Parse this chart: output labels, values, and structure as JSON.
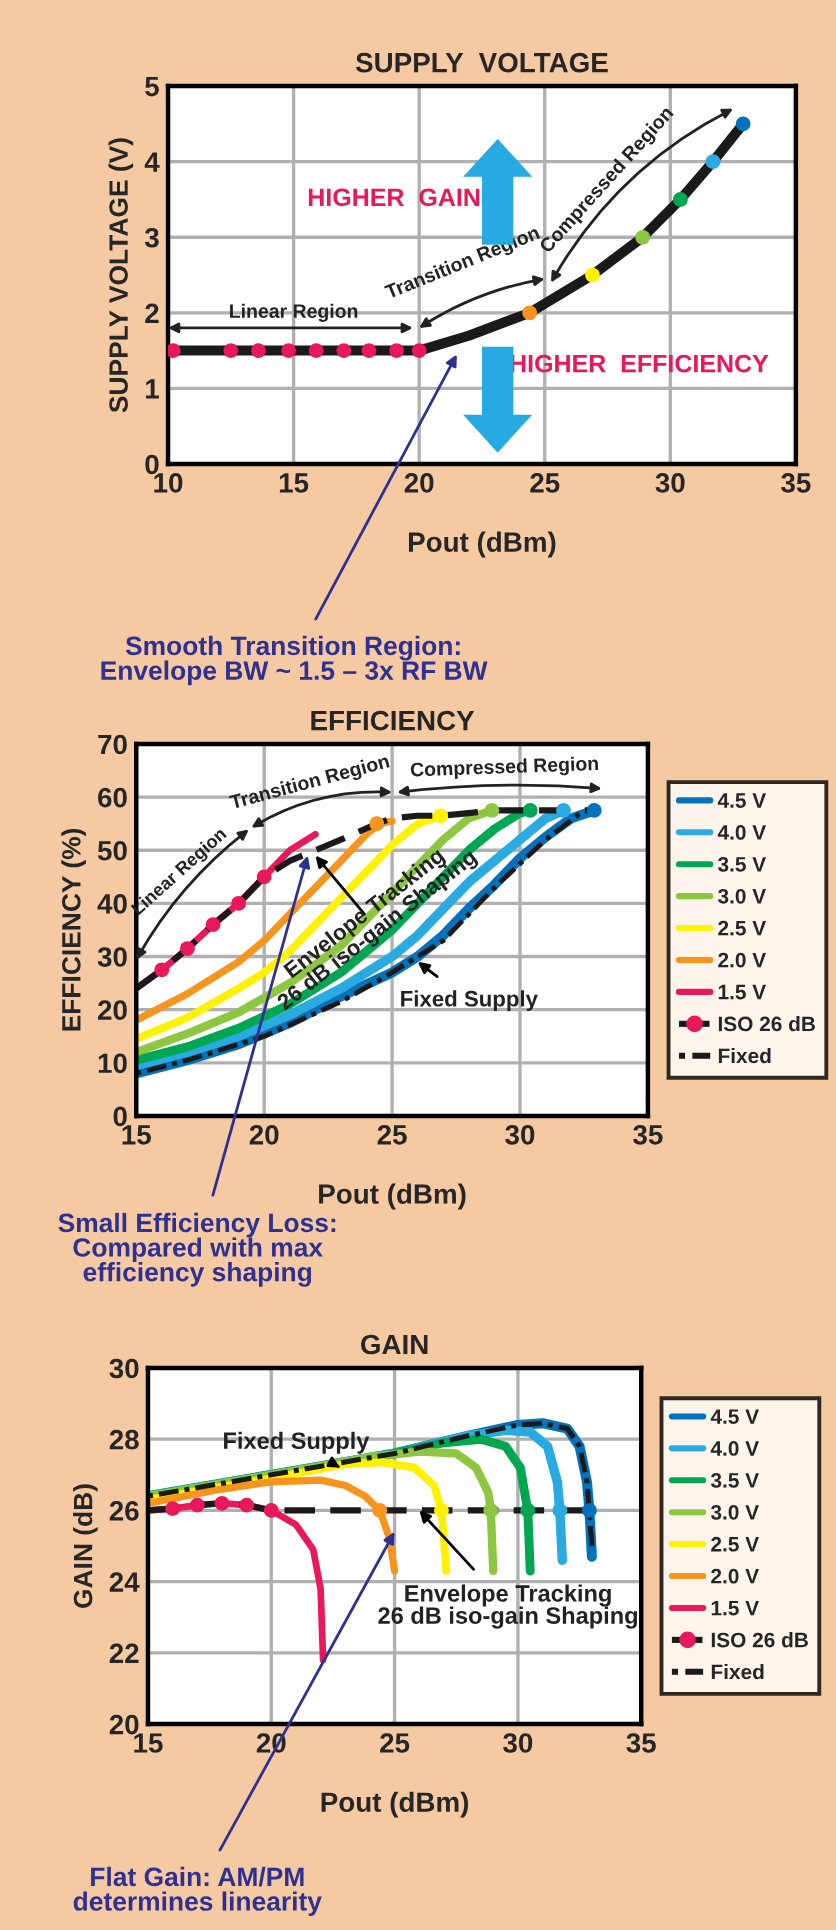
{
  "chart_data": [
    {
      "type": "line",
      "title": "SUPPLY  VOLTAGE",
      "xlabel": "Pout (dBm)",
      "ylabel": "SUPPLY VOLTAGE (V)",
      "xlim": [
        10,
        35
      ],
      "ylim": [
        0,
        5
      ],
      "xticks": [
        10,
        15,
        20,
        25,
        30,
        35
      ],
      "yticks": [
        0,
        1,
        2,
        3,
        4,
        5
      ],
      "grid": true,
      "legend": false,
      "line_style": "solid",
      "series": [
        {
          "color": "#1a1a1a",
          "marker": "circle",
          "x": [
            10.2,
            12.5,
            13.6,
            14.8,
            15.9,
            17,
            18,
            19.1,
            20,
            22,
            24.4,
            26.9,
            28.9,
            30.4,
            31.7,
            32.9
          ],
          "values": [
            1.5,
            1.5,
            1.5,
            1.5,
            1.5,
            1.5,
            1.5,
            1.5,
            1.5,
            1.7,
            2.0,
            2.5,
            3.0,
            3.5,
            4.0,
            4.5
          ],
          "colors": [
            "#e8185a",
            "#e8185a",
            "#e8185a",
            "#e8185a",
            "#e8185a",
            "#e8185a",
            "#e8185a",
            "#e8185a",
            "#e8185a",
            null,
            "#f7941d",
            "#fff200",
            "#8dc63f",
            "#00a651",
            "#29abe2",
            "#0072bc"
          ]
        }
      ],
      "annotations": [
        "HIGHER  GAIN",
        "HIGHER  EFFICIENCY",
        "Linear Region",
        "Transition Region",
        "Compressed Region",
        "Smooth Transition Region:\nEnvelope BW ~ 1.5 – 3x RF BW"
      ]
    },
    {
      "type": "line",
      "title": "EFFICIENCY",
      "xlabel": "Pout (dBm)",
      "ylabel": "EFFICIENCY (%)",
      "xlim": [
        15,
        35
      ],
      "ylim": [
        0,
        70
      ],
      "xticks": [
        15,
        20,
        25,
        30,
        35
      ],
      "yticks": [
        0,
        10,
        20,
        30,
        40,
        50,
        60,
        70
      ],
      "grid": true,
      "legend": "right",
      "line_style": "solid",
      "series": [
        {
          "name": "4.5 V",
          "color": "#0072bc",
          "x": [
            15,
            17,
            19,
            21,
            23,
            25,
            26,
            27,
            28,
            29,
            30,
            31,
            32,
            32.9
          ],
          "values": [
            8,
            10.5,
            13.5,
            17.5,
            22.5,
            27,
            30,
            34,
            39,
            43.5,
            48.5,
            52.5,
            56,
            57.5
          ]
        },
        {
          "name": "4.0 V",
          "color": "#29abe2",
          "x": [
            15,
            17,
            19,
            21,
            23,
            24,
            25,
            26,
            27,
            28,
            29,
            30,
            31,
            31.7
          ],
          "values": [
            9.5,
            12,
            15,
            19,
            24,
            27,
            30,
            34,
            39,
            44,
            48,
            52,
            56,
            57.5
          ]
        },
        {
          "name": "3.5 V",
          "color": "#00a651",
          "x": [
            15,
            17,
            19,
            21,
            23,
            24,
            25,
            26,
            27,
            28,
            29,
            30,
            30.4
          ],
          "values": [
            10.5,
            13,
            16.5,
            21,
            27,
            31,
            35,
            40,
            45,
            50,
            54,
            57,
            57.5
          ]
        },
        {
          "name": "3.0 V",
          "color": "#8dc63f",
          "x": [
            15,
            17,
            19,
            21,
            22,
            23,
            24,
            25,
            26,
            27,
            28,
            28.9
          ],
          "values": [
            12,
            15.5,
            19.5,
            25,
            28.5,
            32,
            37,
            42,
            47,
            52,
            56,
            57.5
          ]
        },
        {
          "name": "2.5 V",
          "color": "#fff200",
          "x": [
            15,
            17,
            19,
            20,
            21,
            22,
            23,
            24,
            25,
            26,
            26.9
          ],
          "values": [
            14.5,
            18.5,
            24,
            27,
            31,
            36,
            41,
            46,
            51,
            55,
            56.5
          ]
        },
        {
          "name": "2.0 V",
          "color": "#f7941d",
          "x": [
            15,
            17,
            19,
            20,
            21,
            22,
            23,
            24,
            24.5,
            25
          ],
          "values": [
            18,
            23,
            29,
            33,
            38,
            43,
            48,
            53,
            55,
            55.5
          ]
        },
        {
          "name": "1.5 V",
          "color": "#e8185a",
          "x": [
            15,
            16,
            17,
            18,
            19,
            20,
            21,
            22
          ],
          "values": [
            24,
            27.5,
            31.5,
            36,
            40,
            45,
            50,
            53
          ]
        },
        {
          "name": "ISO 26 dB",
          "color": "#1a1a1a",
          "line_style": "dashed",
          "x": [
            15,
            16,
            17,
            18,
            19,
            20,
            21,
            22,
            23,
            24.4,
            25,
            26,
            26.9,
            28,
            28.9,
            30.4,
            31.7,
            32.9
          ],
          "values": [
            24,
            27.5,
            31.5,
            36,
            40,
            45,
            48,
            50,
            52,
            55,
            56,
            56.5,
            56.5,
            57,
            57.5,
            57.5,
            57.5,
            57.5
          ]
        },
        {
          "type": "scatter",
          "marker": "circle",
          "x": [
            16,
            17,
            18,
            19,
            20,
            24.4,
            26.9,
            28.9,
            30.4,
            31.7,
            32.9
          ],
          "values": [
            27.5,
            31.5,
            36,
            40,
            45,
            55,
            56.5,
            57.5,
            57.5,
            57.5,
            57.5
          ],
          "colors": [
            "#e8185a",
            "#e8185a",
            "#e8185a",
            "#e8185a",
            "#e8185a",
            "#f7941d",
            "#fff200",
            "#8dc63f",
            "#00a651",
            "#29abe2",
            "#0072bc"
          ]
        },
        {
          "name": "Fixed",
          "color": "#1a1a1a",
          "line_style": "dashdot",
          "x": [
            15,
            17,
            20,
            23,
            25,
            27,
            29,
            31,
            32.5
          ],
          "values": [
            8,
            10.5,
            15,
            21.5,
            27,
            33,
            43,
            52,
            57.5
          ]
        }
      ],
      "annotations": [
        "Linear Region",
        "Transition Region",
        "Compressed Region",
        {
          "text": "Envelope Tracking\n26 dB iso-gain Shaping",
          "x": 22,
          "y": 49
        },
        {
          "text": "Fixed Supply",
          "x": 26,
          "y": 29
        },
        {
          "text": "Small Efficiency Loss:\nCompared with max\nefficiency shaping",
          "x": 21.7,
          "y": 49
        }
      ]
    },
    {
      "type": "line",
      "title": "GAIN",
      "xlabel": "Pout (dBm)",
      "ylabel": "GAIN (dB)",
      "xlim": [
        15,
        35
      ],
      "ylim": [
        20,
        30
      ],
      "xticks": [
        15,
        20,
        25,
        30,
        35
      ],
      "yticks": [
        20,
        22,
        24,
        26,
        28,
        30
      ],
      "grid": true,
      "legend": "right",
      "line_style": "solid",
      "series": [
        {
          "name": "4.5 V",
          "color": "#0072bc",
          "x": [
            15,
            20,
            25,
            28,
            30,
            31,
            32,
            32.5,
            32.8,
            32.9,
            33
          ],
          "values": [
            26.4,
            27,
            27.6,
            28.1,
            28.4,
            28.45,
            28.3,
            27.8,
            26.8,
            26,
            24.7
          ]
        },
        {
          "name": "4.0 V",
          "color": "#29abe2",
          "x": [
            15,
            20,
            25,
            28,
            29.5,
            30.5,
            31.2,
            31.6,
            31.7,
            31.8
          ],
          "values": [
            26.4,
            27,
            27.6,
            28.1,
            28.25,
            28.2,
            27.8,
            26.8,
            26,
            24.6
          ]
        },
        {
          "name": "3.5 V",
          "color": "#00a651",
          "x": [
            15,
            20,
            25,
            27,
            28.5,
            29.5,
            30.1,
            30.4,
            30.5
          ],
          "values": [
            26.4,
            27,
            27.6,
            27.9,
            28,
            27.8,
            27.2,
            26,
            24.3
          ]
        },
        {
          "name": "3.0 V",
          "color": "#8dc63f",
          "x": [
            15,
            20,
            24,
            26,
            27.5,
            28.3,
            28.8,
            28.9,
            29
          ],
          "values": [
            26.4,
            27,
            27.5,
            27.65,
            27.6,
            27.2,
            26.5,
            26,
            24.3
          ]
        },
        {
          "name": "2.5 V",
          "color": "#fff200",
          "x": [
            15,
            20,
            23,
            24.5,
            25.8,
            26.6,
            26.9,
            27.1
          ],
          "values": [
            26.3,
            26.9,
            27.3,
            27.35,
            27.2,
            26.7,
            26,
            24.3
          ]
        },
        {
          "name": "2.0 V",
          "color": "#f7941d",
          "x": [
            15,
            18,
            20,
            22,
            23,
            23.8,
            24.4,
            24.8,
            25
          ],
          "values": [
            26.2,
            26.6,
            26.8,
            26.85,
            26.7,
            26.4,
            26,
            25.2,
            24.3
          ]
        },
        {
          "name": "1.5 V",
          "color": "#e8185a",
          "x": [
            15,
            16,
            17,
            18,
            19,
            20,
            21,
            21.7,
            22,
            22.1
          ],
          "values": [
            26,
            26.05,
            26.15,
            26.2,
            26.15,
            26,
            25.6,
            24.9,
            23.8,
            21.8
          ]
        },
        {
          "name": "ISO 26 dB",
          "color": "#1a1a1a",
          "line_style": "dashed",
          "x": [
            15,
            16,
            17,
            18,
            19,
            20,
            24.4,
            26.9,
            28.9,
            30.4,
            31.7,
            32.9,
            33
          ],
          "values": [
            26,
            26.05,
            26.15,
            26.2,
            26.15,
            26,
            26,
            26,
            26,
            26,
            26,
            26,
            26
          ]
        },
        {
          "type": "scatter",
          "marker": "circle",
          "x": [
            16,
            17,
            18,
            19,
            20,
            24.4,
            26.9,
            28.9,
            30.4,
            31.7,
            32.9
          ],
          "values": [
            26.05,
            26.15,
            26.2,
            26.15,
            26,
            26,
            26,
            26,
            26,
            26,
            26
          ],
          "colors": [
            "#e8185a",
            "#e8185a",
            "#e8185a",
            "#e8185a",
            "#e8185a",
            "#f7941d",
            "#fff200",
            "#8dc63f",
            "#00a651",
            "#29abe2",
            "#0072bc"
          ]
        },
        {
          "name": "Fixed",
          "color": "#1a1a1a",
          "line_style": "dashdot",
          "x": [
            15,
            20,
            25,
            28,
            30,
            31,
            32,
            32.5,
            32.8,
            33
          ],
          "values": [
            26.4,
            27,
            27.6,
            28.1,
            28.4,
            28.45,
            28.3,
            27.8,
            26.8,
            25
          ]
        }
      ],
      "annotations": [
        {
          "text": "Fixed Supply",
          "x": 22.8,
          "y": 27.2
        },
        {
          "text": "Envelope Tracking\n26 dB iso-gain Shaping",
          "x": 26,
          "y": 26
        },
        {
          "text": "Flat Gain: AM/PM\ndetermines linearity",
          "x": 25,
          "y": 25.4
        }
      ]
    }
  ]
}
